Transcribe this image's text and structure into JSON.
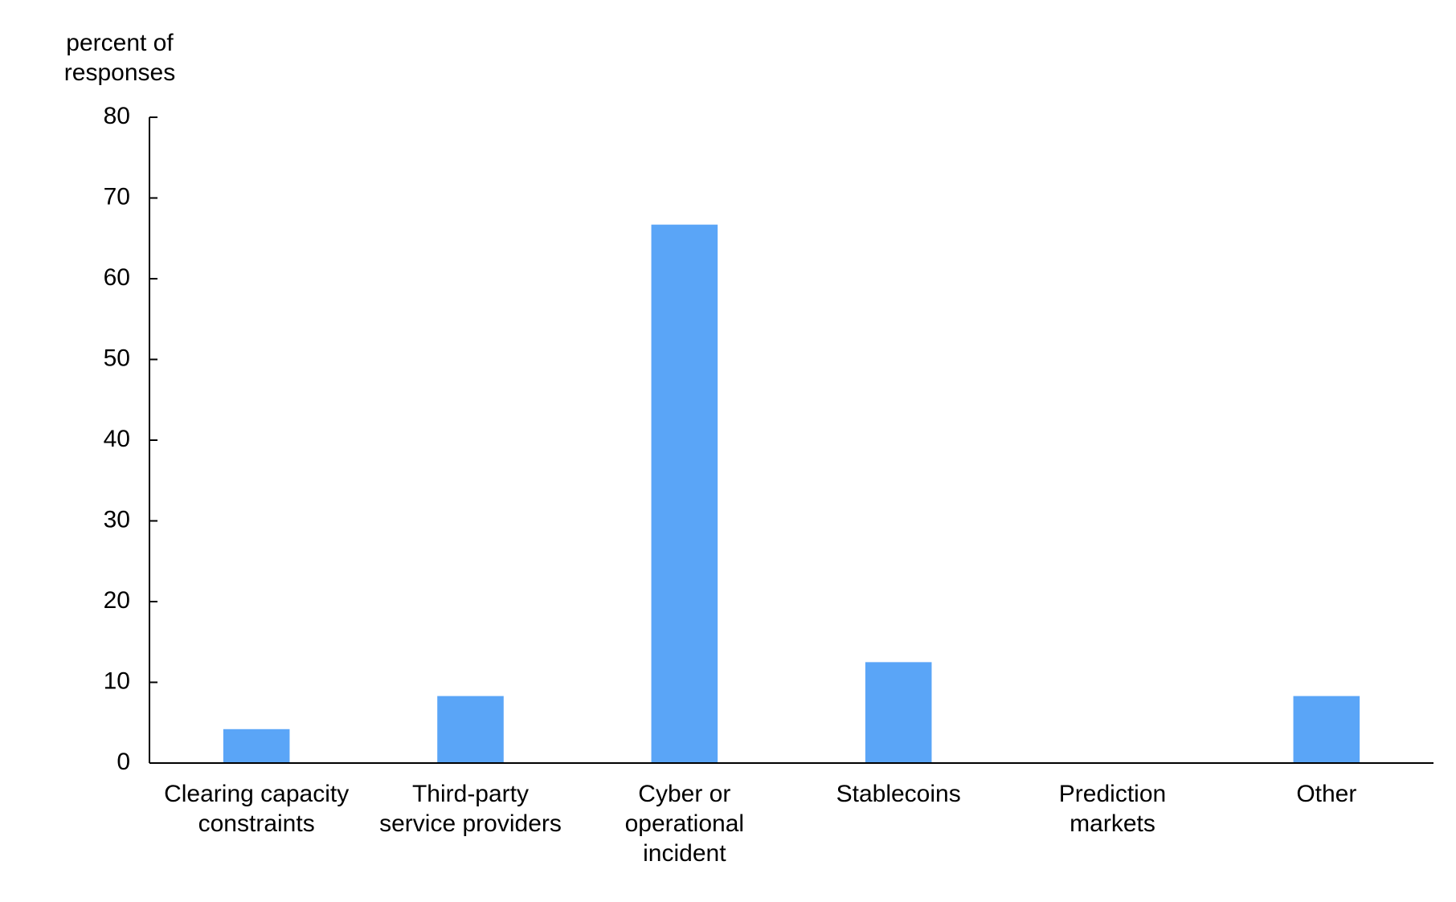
{
  "chart_data": {
    "type": "bar",
    "y_label": "percent of\nresponses",
    "categories": [
      "Clearing capacity\nconstraints",
      "Third-party\nservice providers",
      "Cyber or\noperational\nincident",
      "Stablecoins",
      "Prediction\nmarkets",
      "Other"
    ],
    "values": [
      4.2,
      8.3,
      66.7,
      12.5,
      0,
      8.3
    ],
    "color": "#5aa5f7",
    "ylim": [
      0,
      80
    ],
    "yticks": [
      0,
      10,
      20,
      30,
      40,
      50,
      60,
      70,
      80
    ],
    "grid": false
  }
}
